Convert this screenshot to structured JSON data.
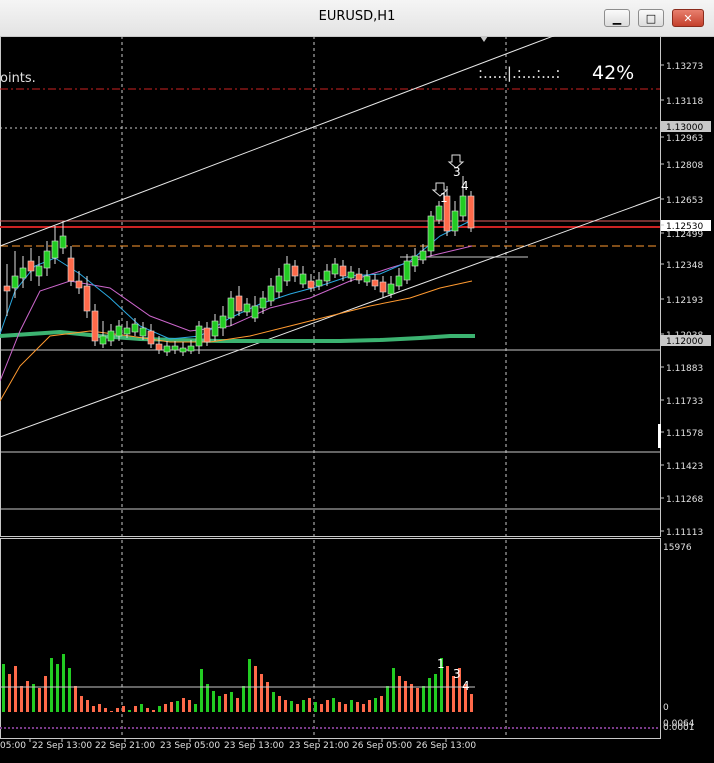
{
  "window": {
    "title": "EURUSD,H1",
    "minimize_glyph": "▁",
    "maximize_glyph": "□",
    "close_glyph": "✕"
  },
  "chart": {
    "left_label": "oints.",
    "spread_indicator": ":.....|.:...:...:",
    "percent": "42%",
    "price_labels": [
      "1.13273",
      "1.13118",
      "1.13000",
      "1.12963",
      "1.12808",
      "1.12653",
      "1.12530",
      "1.12499",
      "1.12348",
      "1.12193",
      "1.12038",
      "1.12000",
      "1.11883",
      "1.11733",
      "1.11578",
      "1.11423",
      "1.11268",
      "1.11113"
    ],
    "highlighted_prices": [
      "1.13000",
      "1.12530",
      "1.12000"
    ],
    "pattern_labels": [
      "1",
      "3",
      "4"
    ],
    "volume_scale_top": "15976",
    "volume_scale_zero": "0",
    "volume_scale_small_1": "0.0064",
    "volume_scale_small_2": "0.0001",
    "time_labels": [
      "05:00",
      "22 Sep 13:00",
      "22 Sep 21:00",
      "23 Sep 05:00",
      "23 Sep 13:00",
      "23 Sep 21:00",
      "26 Sep 05:00",
      "26 Sep 13:00"
    ],
    "colors": {
      "bull": "#22cc22",
      "bear": "#ff6a4a",
      "grid": "#c8c8c8",
      "resistance": "#cc2222",
      "orange": "#ff9a30"
    }
  }
}
